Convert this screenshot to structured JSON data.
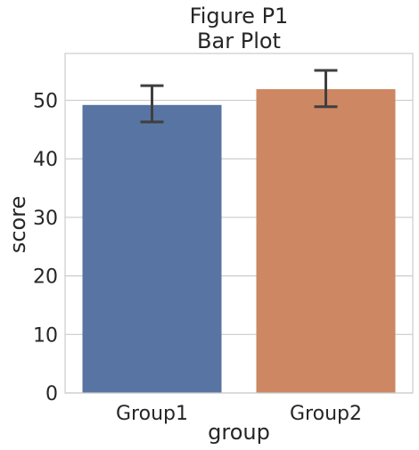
{
  "chart_data": {
    "type": "bar",
    "title": "Figure P1",
    "subtitle": "Bar Plot",
    "xlabel": "group",
    "ylabel": "score",
    "categories": [
      "Group1",
      "Group2"
    ],
    "values": [
      49.2,
      51.9
    ],
    "error_bars": [
      {
        "low": 46.3,
        "high": 52.5
      },
      {
        "low": 48.9,
        "high": 55.1
      }
    ],
    "ylim": [
      0,
      58
    ],
    "yticks": [
      0,
      10,
      20,
      30,
      40,
      50
    ],
    "grid": "horizontal",
    "colors": [
      "#5874a3",
      "#cd8762"
    ],
    "grid_color": "#cccccc",
    "error_color": "#3f3f3f"
  }
}
